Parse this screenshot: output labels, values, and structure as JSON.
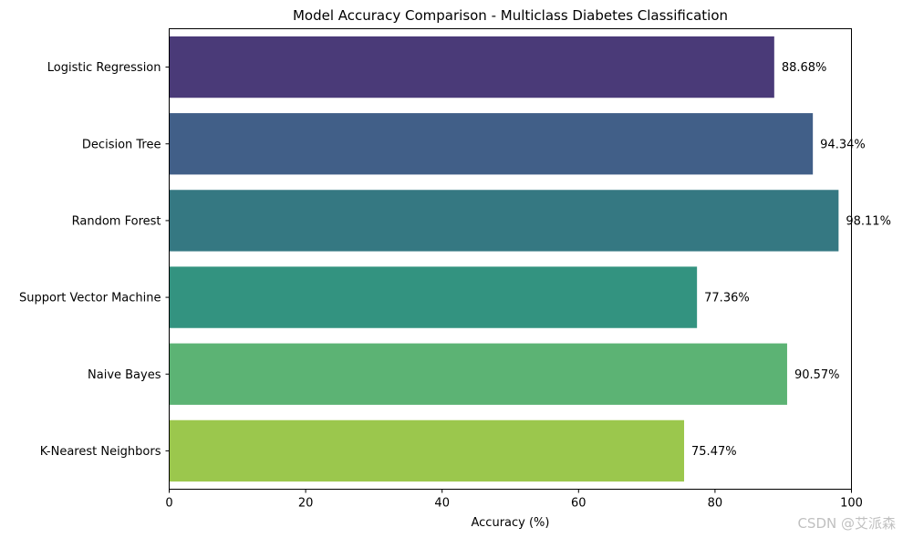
{
  "chart_data": {
    "type": "bar",
    "orientation": "horizontal",
    "title": "Model Accuracy Comparison - Multiclass Diabetes Classification",
    "xlabel": "Accuracy (%)",
    "ylabel": "",
    "xlim": [
      0,
      100
    ],
    "xticks": [
      0,
      20,
      40,
      60,
      80,
      100
    ],
    "grid": false,
    "categories": [
      "Logistic Regression",
      "Decision Tree",
      "Random Forest",
      "Support Vector Machine",
      "Naive Bayes",
      "K-Nearest Neighbors"
    ],
    "values": [
      88.68,
      94.34,
      98.11,
      77.36,
      90.57,
      75.47
    ],
    "data_labels": [
      "88.68%",
      "94.34%",
      "98.11%",
      "77.36%",
      "90.57%",
      "75.47%"
    ],
    "colors": [
      "#4a3a78",
      "#415f88",
      "#357882",
      "#339380",
      "#5cb374",
      "#9bc74d"
    ]
  },
  "watermark": "CSDN @艾派森"
}
